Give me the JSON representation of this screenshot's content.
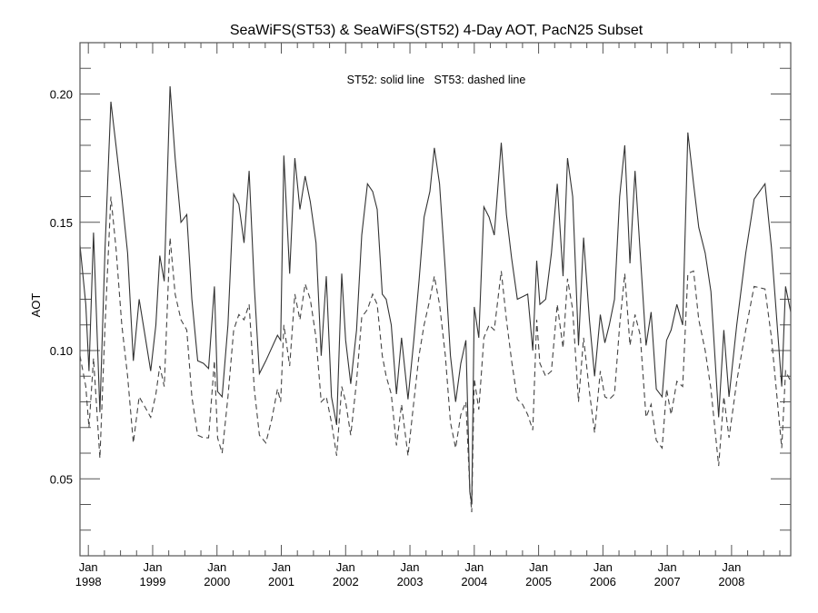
{
  "chart_data": {
    "type": "line",
    "title": "SeaWiFS(ST53) & SeaWiFS(ST52) 4-Day AOT, PacN25 Subset",
    "annotation": "ST52: solid line   ST53: dashed line",
    "xlabel": "",
    "ylabel": "AOT",
    "xlim": [
      1997.87,
      2008.92
    ],
    "ylim": [
      0.02,
      0.22
    ],
    "grid": false,
    "y_ticks": [
      {
        "value": 0.05,
        "label": "0.05"
      },
      {
        "value": 0.1,
        "label": "0.10"
      },
      {
        "value": 0.15,
        "label": "0.15"
      },
      {
        "value": 0.2,
        "label": "0.20"
      }
    ],
    "y_minor_step": 0.01,
    "x_ticks": [
      {
        "value": 1998,
        "label1": "Jan",
        "label2": "1998"
      },
      {
        "value": 1999,
        "label1": "Jan",
        "label2": "1999"
      },
      {
        "value": 2000,
        "label1": "Jan",
        "label2": "2000"
      },
      {
        "value": 2001,
        "label1": "Jan",
        "label2": "2001"
      },
      {
        "value": 2002,
        "label1": "Jan",
        "label2": "2002"
      },
      {
        "value": 2003,
        "label1": "Jan",
        "label2": "2003"
      },
      {
        "value": 2004,
        "label1": "Jan",
        "label2": "2004"
      },
      {
        "value": 2005,
        "label1": "Jan",
        "label2": "2005"
      },
      {
        "value": 2006,
        "label1": "Jan",
        "label2": "2006"
      },
      {
        "value": 2007,
        "label1": "Jan",
        "label2": "2007"
      },
      {
        "value": 2008,
        "label1": "Jan",
        "label2": "2008"
      }
    ],
    "x_minor_step": 0.25,
    "series": [
      {
        "name": "ST52",
        "style": "solid",
        "points": [
          [
            1997.87,
            0.141
          ],
          [
            1997.96,
            0.118
          ],
          [
            1998.01,
            0.092
          ],
          [
            1998.08,
            0.146
          ],
          [
            1998.18,
            0.076
          ],
          [
            1998.26,
            0.14
          ],
          [
            1998.35,
            0.197
          ],
          [
            1998.43,
            0.18
          ],
          [
            1998.52,
            0.16
          ],
          [
            1998.61,
            0.138
          ],
          [
            1998.7,
            0.096
          ],
          [
            1998.79,
            0.12
          ],
          [
            1998.88,
            0.106
          ],
          [
            1998.97,
            0.092
          ],
          [
            1999.05,
            0.11
          ],
          [
            1999.11,
            0.137
          ],
          [
            1999.18,
            0.127
          ],
          [
            1999.27,
            0.203
          ],
          [
            1999.35,
            0.175
          ],
          [
            1999.44,
            0.15
          ],
          [
            1999.53,
            0.153
          ],
          [
            1999.61,
            0.12
          ],
          [
            1999.7,
            0.096
          ],
          [
            1999.79,
            0.095
          ],
          [
            1999.87,
            0.093
          ],
          [
            1999.96,
            0.125
          ],
          [
            2000.01,
            0.084
          ],
          [
            2000.08,
            0.082
          ],
          [
            2000.17,
            0.11
          ],
          [
            2000.26,
            0.161
          ],
          [
            2000.34,
            0.157
          ],
          [
            2000.42,
            0.142
          ],
          [
            2000.5,
            0.17
          ],
          [
            2000.58,
            0.125
          ],
          [
            2000.66,
            0.091
          ],
          [
            2000.76,
            0.096
          ],
          [
            2000.85,
            0.101
          ],
          [
            2000.94,
            0.106
          ],
          [
            2000.99,
            0.104
          ],
          [
            2001.04,
            0.176
          ],
          [
            2001.13,
            0.13
          ],
          [
            2001.21,
            0.175
          ],
          [
            2001.29,
            0.155
          ],
          [
            2001.37,
            0.168
          ],
          [
            2001.45,
            0.158
          ],
          [
            2001.54,
            0.142
          ],
          [
            2001.62,
            0.098
          ],
          [
            2001.7,
            0.129
          ],
          [
            2001.78,
            0.082
          ],
          [
            2001.86,
            0.071
          ],
          [
            2001.94,
            0.13
          ],
          [
            2002.0,
            0.104
          ],
          [
            2002.08,
            0.087
          ],
          [
            2002.17,
            0.108
          ],
          [
            2002.25,
            0.145
          ],
          [
            2002.34,
            0.165
          ],
          [
            2002.42,
            0.162
          ],
          [
            2002.49,
            0.155
          ],
          [
            2002.57,
            0.122
          ],
          [
            2002.63,
            0.12
          ],
          [
            2002.71,
            0.11
          ],
          [
            2002.79,
            0.083
          ],
          [
            2002.87,
            0.105
          ],
          [
            2002.97,
            0.081
          ],
          [
            2003.06,
            0.104
          ],
          [
            2003.14,
            0.127
          ],
          [
            2003.22,
            0.152
          ],
          [
            2003.31,
            0.162
          ],
          [
            2003.38,
            0.179
          ],
          [
            2003.46,
            0.165
          ],
          [
            2003.55,
            0.131
          ],
          [
            2003.63,
            0.098
          ],
          [
            2003.71,
            0.08
          ],
          [
            2003.79,
            0.095
          ],
          [
            2003.87,
            0.104
          ],
          [
            2003.93,
            0.045
          ],
          [
            2003.96,
            0.04
          ],
          [
            2004.0,
            0.117
          ],
          [
            2004.07,
            0.105
          ],
          [
            2004.15,
            0.156
          ],
          [
            2004.23,
            0.152
          ],
          [
            2004.31,
            0.145
          ],
          [
            2004.42,
            0.181
          ],
          [
            2004.5,
            0.153
          ],
          [
            2004.58,
            0.136
          ],
          [
            2004.67,
            0.12
          ],
          [
            2004.75,
            0.121
          ],
          [
            2004.83,
            0.122
          ],
          [
            2004.91,
            0.1
          ],
          [
            2004.97,
            0.135
          ],
          [
            2005.02,
            0.118
          ],
          [
            2005.11,
            0.12
          ],
          [
            2005.2,
            0.138
          ],
          [
            2005.29,
            0.165
          ],
          [
            2005.38,
            0.129
          ],
          [
            2005.45,
            0.175
          ],
          [
            2005.53,
            0.16
          ],
          [
            2005.62,
            0.102
          ],
          [
            2005.7,
            0.144
          ],
          [
            2005.79,
            0.112
          ],
          [
            2005.87,
            0.09
          ],
          [
            2005.96,
            0.114
          ],
          [
            2006.03,
            0.103
          ],
          [
            2006.1,
            0.11
          ],
          [
            2006.18,
            0.12
          ],
          [
            2006.26,
            0.16
          ],
          [
            2006.34,
            0.18
          ],
          [
            2006.42,
            0.134
          ],
          [
            2006.5,
            0.17
          ],
          [
            2006.58,
            0.138
          ],
          [
            2006.67,
            0.102
          ],
          [
            2006.75,
            0.115
          ],
          [
            2006.83,
            0.085
          ],
          [
            2006.92,
            0.082
          ],
          [
            2006.99,
            0.104
          ],
          [
            2007.06,
            0.108
          ],
          [
            2007.15,
            0.118
          ],
          [
            2007.24,
            0.11
          ],
          [
            2007.32,
            0.185
          ],
          [
            2007.41,
            0.165
          ],
          [
            2007.49,
            0.148
          ],
          [
            2007.59,
            0.138
          ],
          [
            2007.68,
            0.123
          ],
          [
            2007.8,
            0.074
          ],
          [
            2007.88,
            0.108
          ],
          [
            2007.96,
            0.082
          ],
          [
            2008.08,
            0.11
          ],
          [
            2008.22,
            0.138
          ],
          [
            2008.35,
            0.159
          ],
          [
            2008.52,
            0.165
          ],
          [
            2008.62,
            0.14
          ],
          [
            2008.78,
            0.086
          ],
          [
            2008.84,
            0.125
          ],
          [
            2008.92,
            0.115
          ]
        ]
      },
      {
        "name": "ST53",
        "style": "dashed",
        "points": [
          [
            1997.87,
            0.098
          ],
          [
            1997.96,
            0.086
          ],
          [
            1998.01,
            0.07
          ],
          [
            1998.08,
            0.097
          ],
          [
            1998.18,
            0.058
          ],
          [
            1998.26,
            0.11
          ],
          [
            1998.35,
            0.16
          ],
          [
            1998.43,
            0.14
          ],
          [
            1998.52,
            0.11
          ],
          [
            1998.61,
            0.09
          ],
          [
            1998.7,
            0.064
          ],
          [
            1998.79,
            0.082
          ],
          [
            1998.88,
            0.078
          ],
          [
            1998.97,
            0.074
          ],
          [
            1999.05,
            0.083
          ],
          [
            1999.11,
            0.094
          ],
          [
            1999.18,
            0.086
          ],
          [
            1999.27,
            0.144
          ],
          [
            1999.35,
            0.122
          ],
          [
            1999.44,
            0.112
          ],
          [
            1999.53,
            0.108
          ],
          [
            1999.61,
            0.082
          ],
          [
            1999.7,
            0.067
          ],
          [
            1999.79,
            0.066
          ],
          [
            1999.87,
            0.066
          ],
          [
            1999.96,
            0.096
          ],
          [
            2000.01,
            0.066
          ],
          [
            2000.08,
            0.06
          ],
          [
            2000.17,
            0.082
          ],
          [
            2000.26,
            0.108
          ],
          [
            2000.34,
            0.114
          ],
          [
            2000.42,
            0.112
          ],
          [
            2000.5,
            0.118
          ],
          [
            2000.58,
            0.085
          ],
          [
            2000.66,
            0.067
          ],
          [
            2000.76,
            0.064
          ],
          [
            2000.85,
            0.073
          ],
          [
            2000.94,
            0.085
          ],
          [
            2000.99,
            0.08
          ],
          [
            2001.04,
            0.11
          ],
          [
            2001.13,
            0.094
          ],
          [
            2001.21,
            0.122
          ],
          [
            2001.29,
            0.112
          ],
          [
            2001.37,
            0.126
          ],
          [
            2001.45,
            0.12
          ],
          [
            2001.54,
            0.105
          ],
          [
            2001.62,
            0.08
          ],
          [
            2001.7,
            0.082
          ],
          [
            2001.78,
            0.072
          ],
          [
            2001.86,
            0.059
          ],
          [
            2001.94,
            0.086
          ],
          [
            2002.0,
            0.08
          ],
          [
            2002.08,
            0.067
          ],
          [
            2002.17,
            0.088
          ],
          [
            2002.25,
            0.113
          ],
          [
            2002.34,
            0.116
          ],
          [
            2002.42,
            0.122
          ],
          [
            2002.49,
            0.118
          ],
          [
            2002.57,
            0.098
          ],
          [
            2002.63,
            0.09
          ],
          [
            2002.71,
            0.083
          ],
          [
            2002.79,
            0.063
          ],
          [
            2002.87,
            0.079
          ],
          [
            2002.97,
            0.059
          ],
          [
            2003.06,
            0.08
          ],
          [
            2003.14,
            0.098
          ],
          [
            2003.22,
            0.11
          ],
          [
            2003.31,
            0.12
          ],
          [
            2003.38,
            0.129
          ],
          [
            2003.46,
            0.118
          ],
          [
            2003.55,
            0.098
          ],
          [
            2003.63,
            0.072
          ],
          [
            2003.71,
            0.062
          ],
          [
            2003.79,
            0.075
          ],
          [
            2003.87,
            0.08
          ],
          [
            2003.93,
            0.046
          ],
          [
            2003.96,
            0.037
          ],
          [
            2004.0,
            0.089
          ],
          [
            2004.07,
            0.077
          ],
          [
            2004.15,
            0.105
          ],
          [
            2004.23,
            0.11
          ],
          [
            2004.31,
            0.108
          ],
          [
            2004.42,
            0.131
          ],
          [
            2004.5,
            0.112
          ],
          [
            2004.58,
            0.096
          ],
          [
            2004.67,
            0.081
          ],
          [
            2004.75,
            0.079
          ],
          [
            2004.83,
            0.075
          ],
          [
            2004.91,
            0.069
          ],
          [
            2004.97,
            0.112
          ],
          [
            2005.02,
            0.095
          ],
          [
            2005.11,
            0.09
          ],
          [
            2005.2,
            0.092
          ],
          [
            2005.29,
            0.118
          ],
          [
            2005.38,
            0.101
          ],
          [
            2005.45,
            0.128
          ],
          [
            2005.53,
            0.116
          ],
          [
            2005.62,
            0.08
          ],
          [
            2005.7,
            0.105
          ],
          [
            2005.79,
            0.084
          ],
          [
            2005.87,
            0.068
          ],
          [
            2005.96,
            0.092
          ],
          [
            2006.03,
            0.082
          ],
          [
            2006.1,
            0.081
          ],
          [
            2006.18,
            0.083
          ],
          [
            2006.26,
            0.11
          ],
          [
            2006.34,
            0.13
          ],
          [
            2006.42,
            0.102
          ],
          [
            2006.5,
            0.114
          ],
          [
            2006.58,
            0.106
          ],
          [
            2006.67,
            0.074
          ],
          [
            2006.75,
            0.079
          ],
          [
            2006.83,
            0.065
          ],
          [
            2006.92,
            0.062
          ],
          [
            2006.99,
            0.085
          ],
          [
            2007.06,
            0.075
          ],
          [
            2007.15,
            0.088
          ],
          [
            2007.24,
            0.086
          ],
          [
            2007.32,
            0.13
          ],
          [
            2007.41,
            0.131
          ],
          [
            2007.49,
            0.112
          ],
          [
            2007.59,
            0.1
          ],
          [
            2007.68,
            0.085
          ],
          [
            2007.8,
            0.055
          ],
          [
            2007.88,
            0.082
          ],
          [
            2007.96,
            0.066
          ],
          [
            2008.08,
            0.088
          ],
          [
            2008.22,
            0.108
          ],
          [
            2008.35,
            0.125
          ],
          [
            2008.52,
            0.124
          ],
          [
            2008.62,
            0.105
          ],
          [
            2008.78,
            0.062
          ],
          [
            2008.84,
            0.092
          ],
          [
            2008.92,
            0.088
          ]
        ]
      }
    ]
  }
}
